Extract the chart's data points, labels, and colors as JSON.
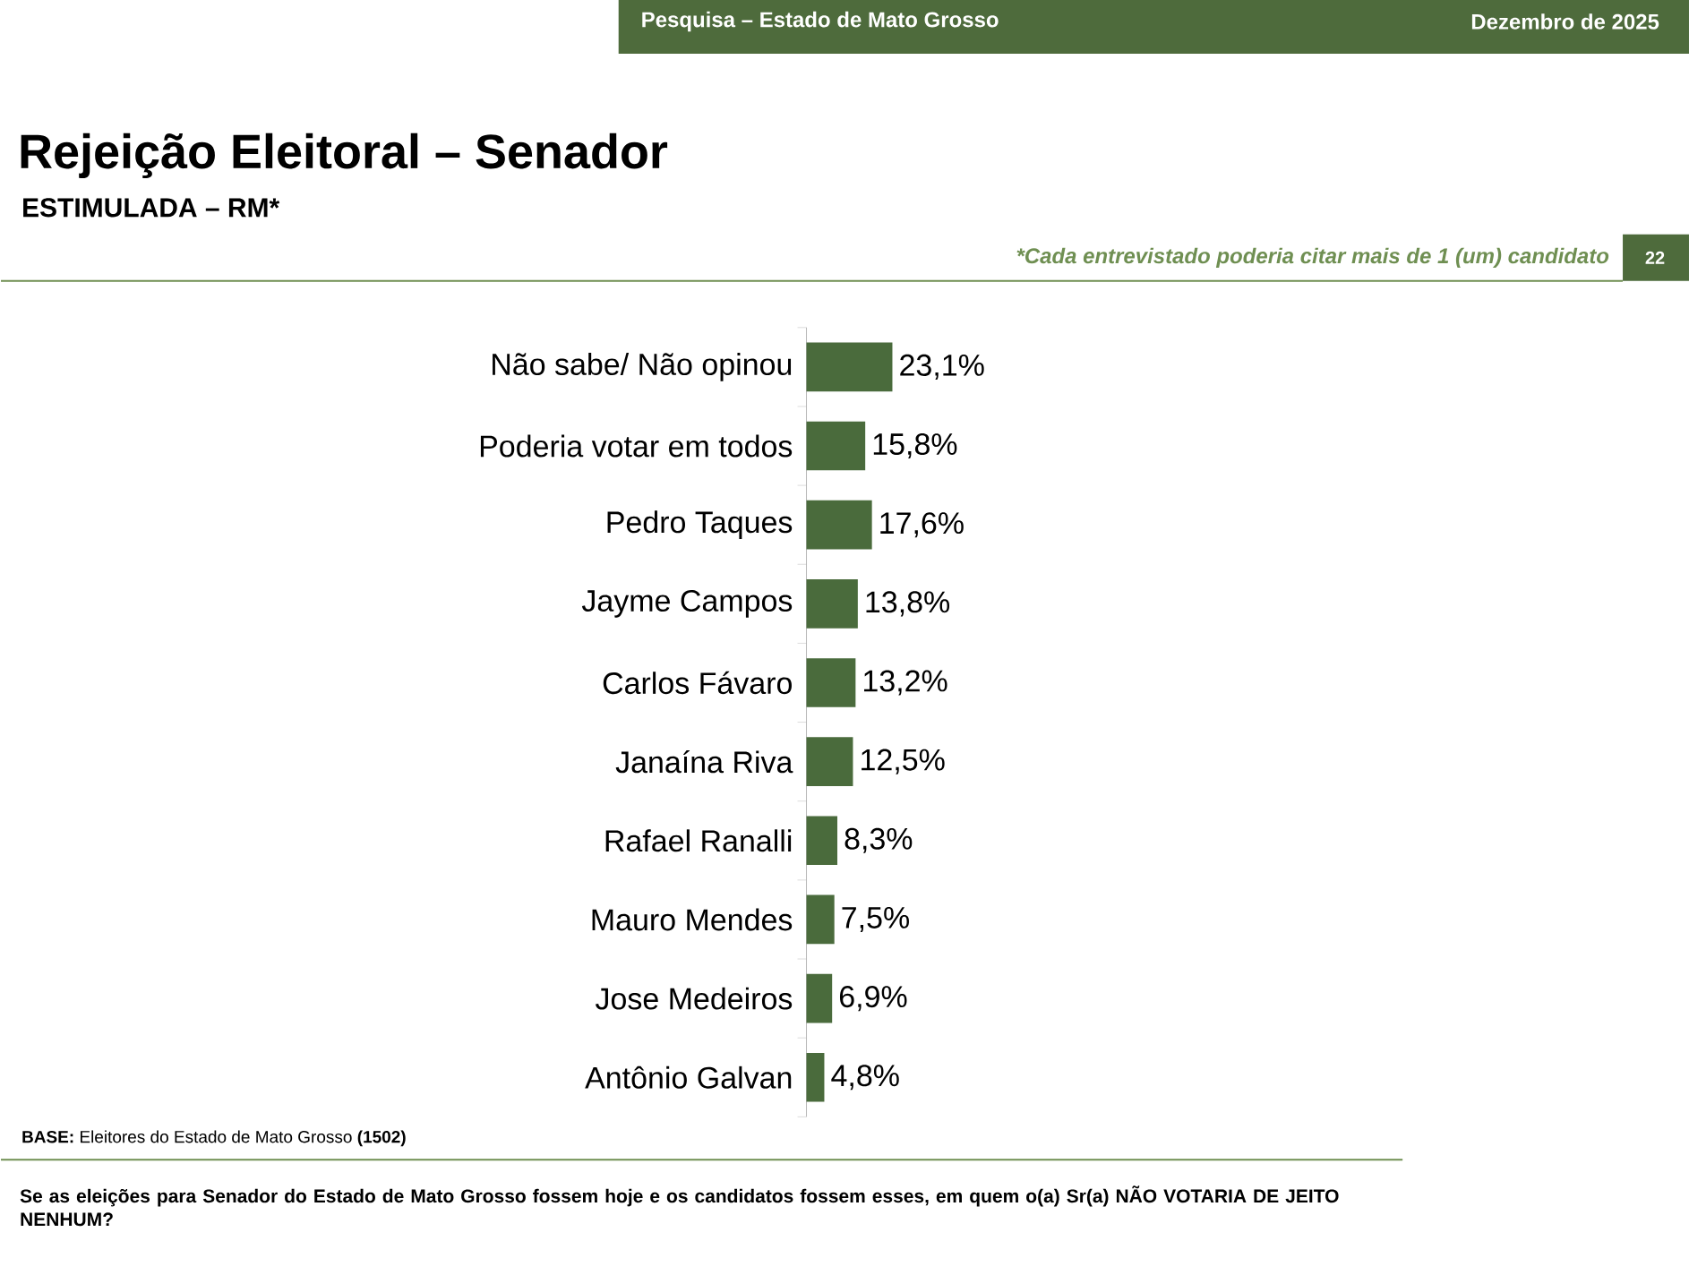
{
  "chart_data": {
    "type": "bar",
    "orientation": "horizontal",
    "title": "Rejeição Eleitoral – Senador",
    "subtitle": "ESTIMULADA – RM*",
    "categories": [
      "Não sabe/ Não opinou",
      "Poderia votar em todos",
      "Pedro Taques",
      "Jayme Campos",
      "Carlos Fávaro",
      "Janaína Riva",
      "Rafael Ranalli",
      "Mauro Mendes",
      "Jose Medeiros",
      "Antônio Galvan"
    ],
    "values": [
      23.1,
      15.8,
      17.6,
      13.8,
      13.2,
      12.5,
      8.3,
      7.5,
      6.9,
      4.8
    ],
    "value_labels": [
      "23,1%",
      "15,8%",
      "17,6%",
      "13,8%",
      "13,2%",
      "12,5%",
      "8,3%",
      "7,5%",
      "6,9%",
      "4,8%"
    ],
    "color": "#4a6b3c",
    "annotations": [
      "Pesquisa – Estado de Mato Grosso",
      "Dezembro de 2025",
      "*Cada entrevistado poderia citar mais de 1 (um) candidato",
      "22",
      "**BASE:** Eleitores do Estado de Mato Grosso **(1502)**",
      "Se as eleições para Senador do Estado de Mato Grosso fossem hoje e os candidatos fossem esses, em quem o(a) Sr(a) NÃO VOTARIA DE JEITO NENHUM?"
    ]
  }
}
